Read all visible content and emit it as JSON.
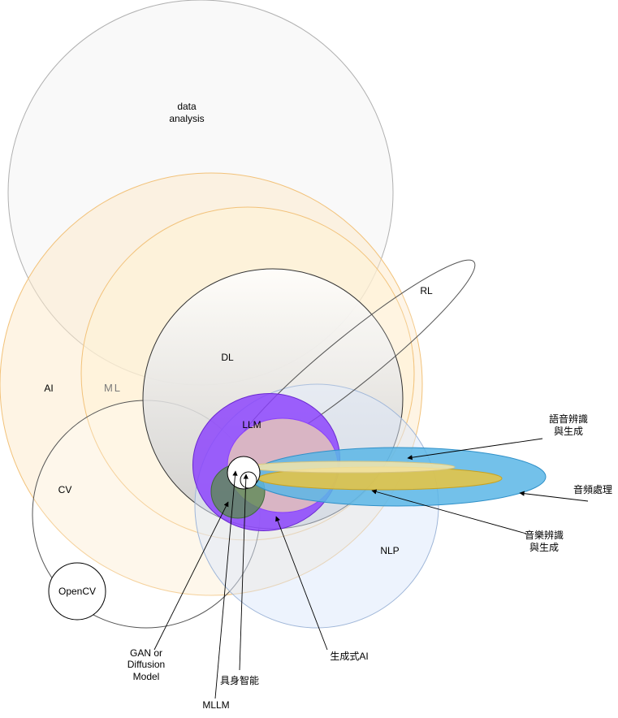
{
  "labels": {
    "data_analysis_line1": "data",
    "data_analysis_line2": "analysis",
    "ai": "AI",
    "ml": "ML",
    "dl": "DL",
    "rl": "RL",
    "llm": "LLM",
    "cv": "CV",
    "nlp": "NLP",
    "opencv": "OpenCV",
    "speech_line1": "語音辨識",
    "speech_line2": "與生成",
    "audio": "音頻處理",
    "music_line1": "音樂辨識",
    "music_line2": "與生成",
    "gan_line1": "GAN or",
    "gan_line2": "Diffusion",
    "gan_line3": "Model",
    "embodied": "具身智能",
    "mllm": "MLLM",
    "genai": "生成式AI"
  },
  "colors": {
    "data_analysis_fill": "#f5f5f5",
    "ai_fill": "#fde9c9",
    "ml_fill": "#fff2d6",
    "dl_fill": "#d6d6d6",
    "nlp_fill": "#dce8fb",
    "genai_fill": "#8a3ffc",
    "llm_fill": "#d9b5c4",
    "audio_fill": "#5ab6e6",
    "music_fill": "#e9c440",
    "mllm_fill": "#5d8a55"
  }
}
